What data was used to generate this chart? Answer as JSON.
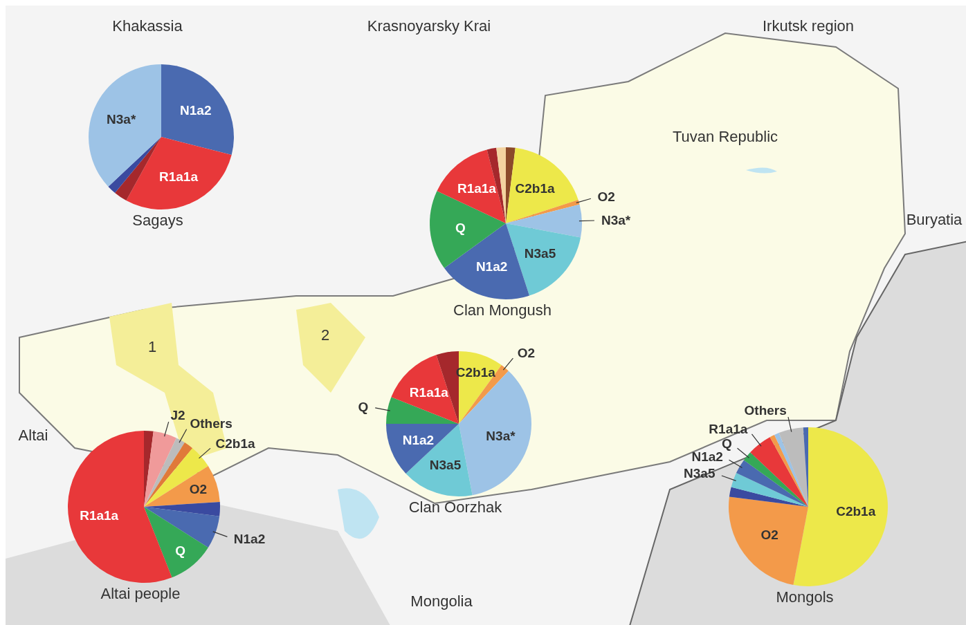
{
  "chart_data": [
    {
      "type": "pie",
      "title": "Sagays",
      "categories": [
        "N1a2",
        "R1a1a",
        null,
        null,
        "N3a*"
      ],
      "values": [
        29,
        29,
        3,
        2,
        37
      ],
      "colors": [
        "#4a6ab0",
        "#e8383a",
        "#a5282c",
        "#3a4aa0",
        "#9dc3e6"
      ]
    },
    {
      "type": "pie",
      "title": "Clan Mongush",
      "categories": [
        null,
        "C2b1a",
        "O2",
        "N3a*",
        "N3a5",
        "N1a2",
        "Q",
        "R1a1a",
        null,
        null
      ],
      "values": [
        2,
        18,
        1,
        7,
        17,
        20,
        17,
        14,
        2,
        2
      ],
      "colors": [
        "#8b4a2a",
        "#ede84a",
        "#f39a4a",
        "#9dc3e6",
        "#6fcad6",
        "#4a6ab0",
        "#35a857",
        "#e8383a",
        "#a5282c",
        "#f3d3a0"
      ]
    },
    {
      "type": "pie",
      "title": "Clan Oorzhak",
      "categories": [
        "C2b1a",
        "O2",
        "N3a*",
        "N3a5",
        "N1a2",
        "Q",
        "R1a1a",
        null
      ],
      "values": [
        10,
        2,
        35,
        16,
        12,
        6,
        14,
        5
      ],
      "colors": [
        "#ede84a",
        "#f39a4a",
        "#9dc3e6",
        "#6fcad6",
        "#4a6ab0",
        "#35a857",
        "#e8383a",
        "#a5282c"
      ]
    },
    {
      "type": "pie",
      "title": "Altai people",
      "categories": [
        null,
        "J2",
        "Others",
        null,
        "C2b1a",
        "O2",
        null,
        "N1a2",
        "Q",
        "R1a1a"
      ],
      "values": [
        2,
        5,
        2,
        2,
        5,
        8,
        3,
        7,
        10,
        56
      ],
      "colors": [
        "#a5282c",
        "#f09a9a",
        "#bcbcbc",
        "#e07a3a",
        "#ede84a",
        "#f39a4a",
        "#3a4aa0",
        "#4a6ab0",
        "#35a857",
        "#e8383a"
      ]
    },
    {
      "type": "pie",
      "title": "Mongols",
      "categories": [
        "C2b1a",
        "O2",
        null,
        "N3a5",
        "N1a2",
        "Q",
        "R1a1a",
        null,
        null,
        "Others",
        null
      ],
      "values": [
        53,
        24,
        2,
        3,
        3,
        2,
        5,
        1,
        1,
        5,
        1
      ],
      "colors": [
        "#ede84a",
        "#f39a4a",
        "#3a4aa0",
        "#6fcad6",
        "#4a6ab0",
        "#35a857",
        "#e8383a",
        "#f39a4a",
        "#9dc3e6",
        "#bcbcbc",
        "#4a6ab0"
      ]
    },
    {
      "type": "other",
      "annotations": [
        "Khakassia",
        "Krasnoyarsky Krai",
        "Irkutsk region",
        "Tuvan Republic",
        "Buryatia",
        "Altai",
        "Mongolia",
        "1",
        "2"
      ]
    }
  ]
}
